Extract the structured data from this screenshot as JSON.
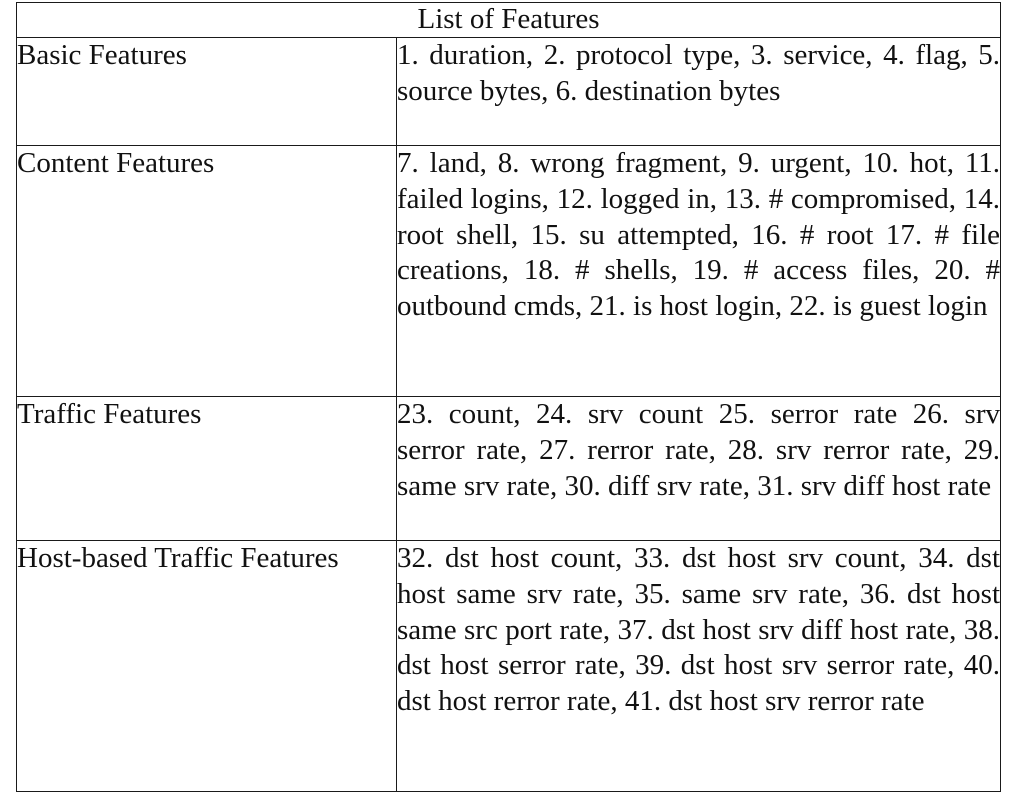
{
  "table": {
    "header": "List of Features",
    "rows": [
      {
        "category": "Basic Features",
        "features": "1. duration, 2. protocol type, 3. service, 4. flag, 5. source bytes, 6. destination bytes"
      },
      {
        "category": "Content Features",
        "features": "7. land, 8. wrong fragment, 9. urgent, 10. hot, 11. failed logins, 12. logged in, 13. # compromised, 14. root shell, 15. su attempted, 16. # root 17. # file creations, 18. # shells, 19. # access files, 20. # outbound cmds, 21. is host login, 22. is guest login"
      },
      {
        "category": "Traffic Features",
        "features": "23. count, 24. srv count 25. serror rate 26. srv serror rate, 27. rerror rate, 28. srv rerror rate, 29. same srv rate, 30. diff srv rate, 31. srv diff host rate"
      },
      {
        "category": "Host-based Traffic Features",
        "features": "32. dst host count, 33. dst host srv count, 34. dst host same srv rate, 35. same srv rate, 36. dst host same src port rate, 37. dst host srv diff host rate, 38. dst host serror rate, 39. dst host srv serror rate, 40. dst host rerror rate, 41. dst host srv rerror rate"
      }
    ]
  }
}
